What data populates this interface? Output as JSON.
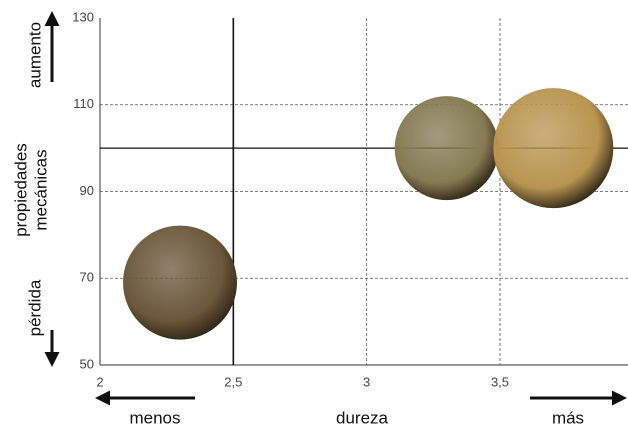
{
  "chart_data": {
    "type": "scatter",
    "x_label": "dureza",
    "x_low": "menos",
    "x_high": "más",
    "y_label": [
      "propiedades",
      "mecánicas"
    ],
    "y_high": "aumento",
    "y_low": "pérdida",
    "x": [
      2.3,
      3.3,
      3.7
    ],
    "values": [
      69,
      100,
      100
    ],
    "colors": [
      "#6b573a",
      "#857a52",
      "#b8954f"
    ],
    "xlim": [
      2,
      3.98
    ],
    "ylim": [
      50,
      130
    ],
    "xticks": [
      2,
      {
        "value": 2.5,
        "label": "2,5"
      },
      3,
      {
        "value": 3.5,
        "label": "3,5"
      }
    ],
    "yticks": [
      50,
      70,
      90,
      110,
      130
    ],
    "reference_lines": {
      "x": 2.5,
      "y": 100
    },
    "grid": true
  }
}
